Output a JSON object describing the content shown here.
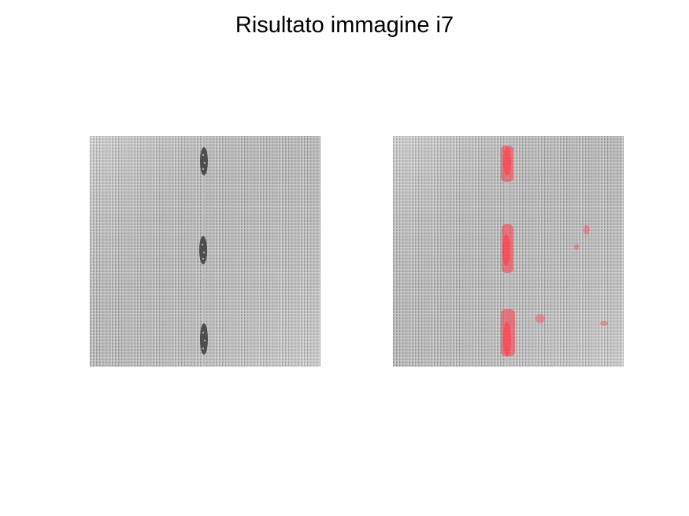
{
  "figure": {
    "title": "Risultato immagine i7"
  },
  "panels": [
    {
      "kind": "original-image",
      "content": "grayscale woven fabric texture with dark vertical defect streaks"
    },
    {
      "kind": "overlay-image",
      "content": "same fabric texture with detected defect regions highlighted in red",
      "highlight_color": "#ff3b4a"
    }
  ],
  "colors": {
    "background": "#ffffff",
    "fabric_light": "#d8d8d8",
    "fabric_dark": "#8a8a8a",
    "defect_dark": "#3a3a3a",
    "highlight": "#ff3b4a"
  }
}
